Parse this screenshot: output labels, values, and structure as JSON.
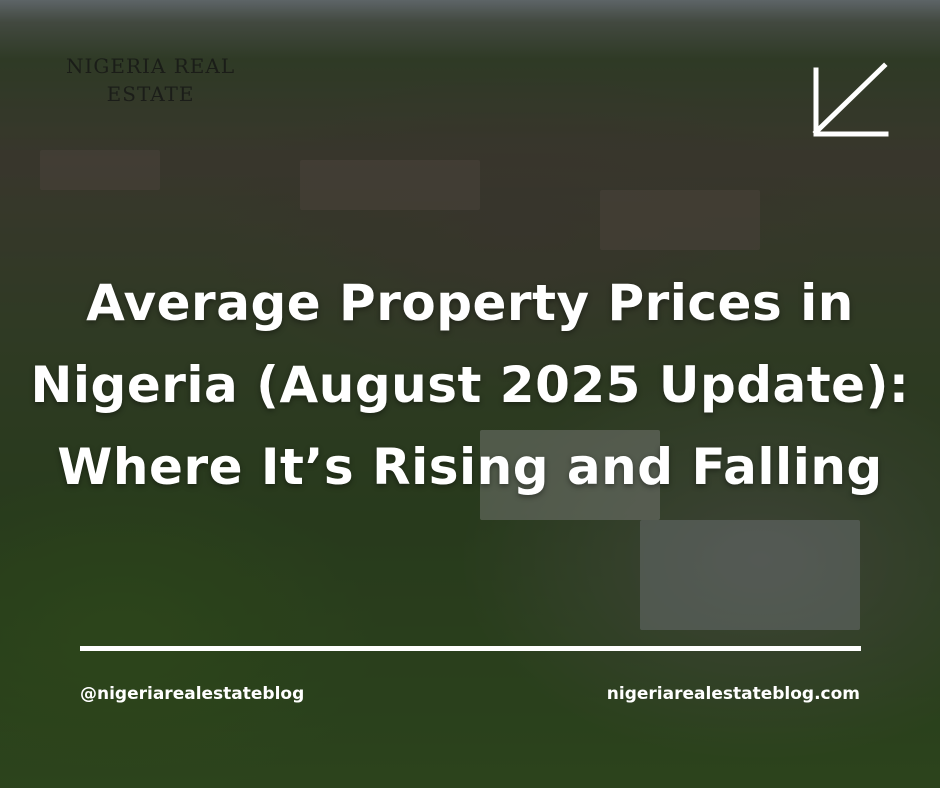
{
  "logo": {
    "lines": [
      "NIGERIA REAL",
      "ESTATE"
    ]
  },
  "title": "Average Property Prices in Nigeria (August 2025 Update): Where It’s Rising and Falling",
  "footer": {
    "handle": "@nigeriarealestateblog",
    "website": "nigeriarealestateblog.com"
  }
}
